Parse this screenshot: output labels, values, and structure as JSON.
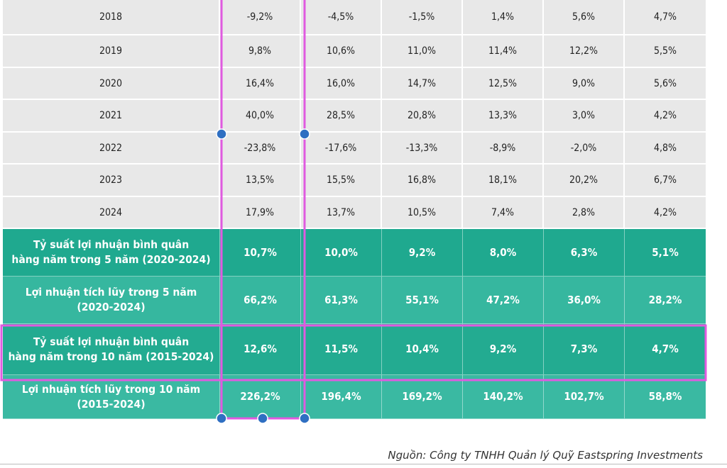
{
  "rows": [
    {
      "year": "2018",
      "values": [
        "-9,2%",
        "-4,5%",
        "-1,5%",
        "1,4%",
        "5,6%",
        "4,7%"
      ]
    },
    {
      "year": "2019",
      "values": [
        "9,8%",
        "10,6%",
        "11,0%",
        "11,4%",
        "12,2%",
        "5,5%"
      ]
    },
    {
      "year": "2020",
      "values": [
        "16,4%",
        "16,0%",
        "14,7%",
        "12,5%",
        "9,0%",
        "5,6%"
      ]
    },
    {
      "year": "2021",
      "values": [
        "40,0%",
        "28,5%",
        "20,8%",
        "13,3%",
        "3,0%",
        "4,2%"
      ]
    },
    {
      "year": "2022",
      "values": [
        "-23,8%",
        "-17,6%",
        "-13,3%",
        "-8,9%",
        "-2,0%",
        "4,8%"
      ]
    },
    {
      "year": "2023",
      "values": [
        "13,5%",
        "15,5%",
        "16,8%",
        "18,1%",
        "20,2%",
        "6,7%"
      ]
    },
    {
      "year": "2024",
      "values": [
        "17,9%",
        "13,7%",
        "10,5%",
        "7,4%",
        "2,8%",
        "4,2%"
      ]
    }
  ],
  "summary": [
    {
      "label_line1": "Tỷ suất lợi nhuận bình quân",
      "label_line2": "hàng năm trong 5 năm (2020-2024)",
      "values": [
        "10,7%",
        "10,0%",
        "9,2%",
        "8,0%",
        "6,3%",
        "5,1%"
      ]
    },
    {
      "label_line1": "Lợi nhuận tích lũy trong 5 năm",
      "label_line2": "(2020-2024)",
      "values": [
        "66,2%",
        "61,3%",
        "55,1%",
        "47,2%",
        "36,0%",
        "28,2%"
      ]
    },
    {
      "label_line1": "Tỷ suất lợi nhuận bình quân",
      "label_line2": "hàng năm trong 10 năm (2015-2024)",
      "values": [
        "12,6%",
        "11,5%",
        "10,4%",
        "9,2%",
        "7,3%",
        "4,7%"
      ]
    },
    {
      "label_line1": "Lợi nhuận tích lũy trong 10 năm",
      "label_line2": "(2015-2024)",
      "values": [
        "226,2%",
        "196,4%",
        "169,2%",
        "140,2%",
        "102,7%",
        "58,8%"
      ]
    }
  ],
  "source": "Nguồn: Công ty TNHH Quản lý Quỹ Eastspring Investments",
  "colors": {
    "selection": "#e05ae0",
    "handle": "#2f6fc2",
    "teal": "#23ab91",
    "row_gray": "#e8e8e8"
  }
}
